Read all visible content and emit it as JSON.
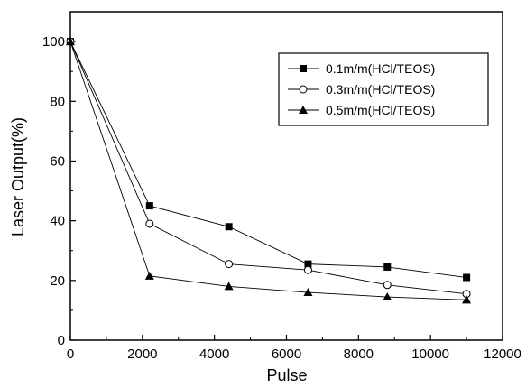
{
  "chart_data": {
    "type": "line",
    "xlabel": "Pulse",
    "ylabel": "Laser Output(%)",
    "xlim": [
      0,
      12000
    ],
    "ylim": [
      0,
      110
    ],
    "xticks": [
      0,
      2000,
      4000,
      6000,
      8000,
      10000,
      12000
    ],
    "yticks": [
      0,
      20,
      40,
      60,
      80,
      100
    ],
    "xtick_labels": [
      "0",
      "2000",
      "4000",
      "6000",
      "8000",
      "10000",
      "12000"
    ],
    "ytick_labels": [
      "0",
      "20",
      "40",
      "60",
      "80",
      "100"
    ],
    "grid": false,
    "legend_position": "top-right",
    "series": [
      {
        "name": "0.1m/m(HCl/TEOS)",
        "marker": "filled-square",
        "x": [
          0,
          2200,
          4400,
          6600,
          8800,
          11000
        ],
        "y": [
          100,
          45,
          38,
          25.5,
          24.5,
          21
        ]
      },
      {
        "name": "0.3m/m(HCl/TEOS)",
        "marker": "open-circle",
        "x": [
          0,
          2200,
          4400,
          6600,
          8800,
          11000
        ],
        "y": [
          100,
          39,
          25.5,
          23.5,
          18.5,
          15.5
        ]
      },
      {
        "name": "0.5m/m(HCl/TEOS)",
        "marker": "filled-triangle",
        "x": [
          0,
          2200,
          4400,
          6600,
          8800,
          11000
        ],
        "y": [
          100,
          21.5,
          18,
          16,
          14.5,
          13.5
        ]
      }
    ]
  }
}
